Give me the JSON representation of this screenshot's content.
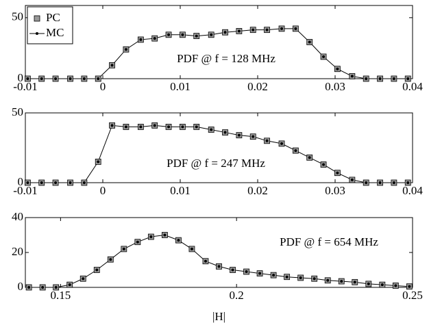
{
  "chart_data": [
    {
      "type": "line",
      "annotation": "PDF @ f = 128 MHz",
      "xlim": [
        -0.01,
        0.04
      ],
      "xticks": [
        -0.01,
        0,
        0.01,
        0.02,
        0.03,
        0.04
      ],
      "ylim": [
        0,
        60
      ],
      "yticks": [
        0,
        50
      ],
      "legend": "upper left",
      "x": [
        -0.0097,
        -0.0079,
        -0.0061,
        -0.0042,
        -0.0024,
        -0.0006,
        0.0012,
        0.003,
        0.0049,
        0.0067,
        0.0085,
        0.0103,
        0.0121,
        0.014,
        0.0158,
        0.0176,
        0.0194,
        0.0212,
        0.0231,
        0.0249,
        0.0267,
        0.0285,
        0.0303,
        0.0322,
        0.034,
        0.0358,
        0.0376,
        0.0394
      ],
      "series": [
        {
          "name": "PC",
          "color": "#999999",
          "values": [
            0,
            0,
            0,
            0,
            0,
            0,
            11,
            24,
            32,
            33,
            36,
            36,
            35,
            36,
            38,
            39,
            40,
            40,
            41,
            41,
            30,
            18,
            8,
            2,
            0,
            0,
            0,
            0
          ]
        },
        {
          "name": "MC",
          "color": "#000000",
          "values": [
            0,
            0,
            0,
            0,
            0,
            0,
            11,
            24,
            32,
            33,
            36,
            36,
            35,
            36,
            38,
            39,
            40,
            40,
            41,
            41,
            30,
            18,
            8,
            2,
            0,
            0,
            0,
            0
          ]
        }
      ]
    },
    {
      "type": "line",
      "annotation": "PDF @ f = 247 MHz",
      "xlim": [
        -0.01,
        0.04
      ],
      "xticks": [
        -0.01,
        0,
        0.01,
        0.02,
        0.03,
        0.04
      ],
      "ylim": [
        0,
        50
      ],
      "yticks": [
        0,
        50
      ],
      "x": [
        -0.0097,
        -0.0079,
        -0.0061,
        -0.0042,
        -0.0024,
        -0.0006,
        0.0012,
        0.003,
        0.0049,
        0.0067,
        0.0085,
        0.0103,
        0.0121,
        0.014,
        0.0158,
        0.0176,
        0.0194,
        0.0212,
        0.0231,
        0.0249,
        0.0267,
        0.0285,
        0.0303,
        0.0322,
        0.034,
        0.0358,
        0.0376,
        0.0394
      ],
      "series": [
        {
          "color": "#999999",
          "values": [
            0,
            0,
            0,
            0,
            0,
            15,
            41,
            40,
            40,
            41,
            40,
            40,
            40,
            38,
            36,
            34,
            33,
            30,
            28,
            23,
            18,
            13,
            7,
            2,
            0,
            0,
            0,
            0
          ]
        },
        {
          "color": "#000000",
          "values": [
            0,
            0,
            0,
            0,
            0,
            15,
            41,
            40,
            40,
            41,
            40,
            40,
            40,
            38,
            36,
            34,
            33,
            30,
            28,
            23,
            18,
            13,
            7,
            2,
            0,
            0,
            0,
            0
          ]
        }
      ]
    },
    {
      "type": "line",
      "annotation": "PDF @ f = 654 MHz",
      "xlabel": "|H|",
      "xlim": [
        0.14,
        0.25
      ],
      "xticks": [
        0.15,
        0.2,
        0.25
      ],
      "ylim": [
        0,
        40
      ],
      "yticks": [
        0,
        20,
        40
      ],
      "x": [
        0.141,
        0.1449,
        0.1487,
        0.1526,
        0.1564,
        0.1603,
        0.1642,
        0.168,
        0.1719,
        0.1757,
        0.1796,
        0.1835,
        0.1873,
        0.1912,
        0.195,
        0.1989,
        0.2028,
        0.2066,
        0.2105,
        0.2143,
        0.2182,
        0.2221,
        0.2259,
        0.2298,
        0.2336,
        0.2375,
        0.2414,
        0.2452,
        0.2491
      ],
      "series": [
        {
          "color": "#999999",
          "values": [
            0,
            0,
            0,
            1.5,
            5,
            10,
            16,
            22,
            26,
            29,
            30,
            27,
            22,
            15,
            12,
            10,
            9,
            8,
            7,
            6,
            5.5,
            5,
            4,
            3.5,
            3,
            2,
            1.5,
            1,
            0.5
          ]
        },
        {
          "color": "#000000",
          "values": [
            0,
            0,
            0,
            1.5,
            5,
            10,
            16,
            22,
            26,
            29,
            30,
            27,
            22,
            15,
            12,
            10,
            9,
            8,
            7,
            6,
            5.5,
            5,
            4,
            3.5,
            3,
            2,
            1.5,
            1,
            0.5
          ]
        }
      ]
    }
  ]
}
